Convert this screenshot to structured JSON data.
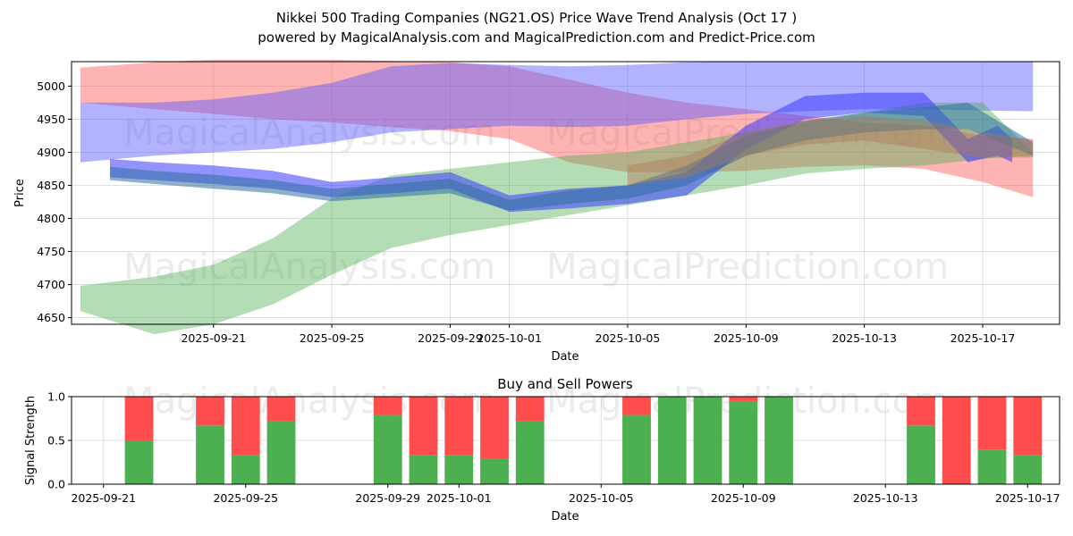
{
  "chart_data": [
    {
      "type": "area",
      "title": "Nikkei 500 Trading Companies (NG21.OS) Price Wave Trend Analysis (Oct 17 )",
      "subtitle": "powered by MagicalAnalysis.com and MagicalPrediction.com and Predict-Price.com",
      "xlabel": "Date",
      "ylabel": "Price",
      "ylim": [
        4640,
        5037
      ],
      "xlim": [
        -1.8,
        31.6
      ],
      "x_origin_date": "2025-09-18",
      "grid": true,
      "x_ticks": [
        {
          "x": 3,
          "label": "2025-09-21"
        },
        {
          "x": 7,
          "label": "2025-09-25"
        },
        {
          "x": 11,
          "label": "2025-09-29"
        },
        {
          "x": 13,
          "label": "2025-10-01"
        },
        {
          "x": 17,
          "label": "2025-10-05"
        },
        {
          "x": 21,
          "label": "2025-10-09"
        },
        {
          "x": 25,
          "label": "2025-10-13"
        },
        {
          "x": 29,
          "label": "2025-10-17"
        }
      ],
      "y_ticks": [
        4650,
        4700,
        4750,
        4800,
        4850,
        4900,
        4950,
        5000
      ],
      "bands": [
        {
          "name": "red-wave",
          "color": "#ff4d4d",
          "opacity": 0.42,
          "x": [
            -1.5,
            1,
            3,
            5,
            7,
            9,
            11,
            13,
            15,
            17,
            19,
            21,
            23,
            25,
            27,
            29,
            30.7
          ],
          "upper": [
            5028,
            5036,
            5040,
            5040,
            5040,
            5038,
            5036,
            5030,
            5010,
            4990,
            4975,
            4965,
            4955,
            4945,
            4940,
            4925,
            4920
          ],
          "lower": [
            4975,
            4965,
            4958,
            4950,
            4945,
            4938,
            4932,
            4920,
            4885,
            4870,
            4870,
            4872,
            4878,
            4880,
            4875,
            4855,
            4832
          ]
        },
        {
          "name": "purple-wave",
          "color": "#5555ff",
          "opacity": 0.45,
          "x": [
            -1.5,
            1,
            3,
            5,
            7,
            9,
            11,
            13,
            15,
            17,
            19,
            21,
            23,
            25,
            27,
            29,
            30.7
          ],
          "upper": [
            4975,
            4975,
            4980,
            4990,
            5005,
            5030,
            5035,
            5032,
            5030,
            5032,
            5036,
            5037,
            5037,
            5037,
            5037,
            5037,
            5037
          ],
          "lower": [
            4885,
            4895,
            4900,
            4905,
            4915,
            4930,
            4935,
            4940,
            4938,
            4940,
            4950,
            4958,
            4962,
            4965,
            4965,
            4963,
            4962
          ]
        },
        {
          "name": "green-wave",
          "color": "#4caf50",
          "opacity": 0.42,
          "x": [
            -1.5,
            1,
            3,
            5,
            7,
            9,
            11,
            13,
            15,
            17,
            19,
            21,
            23,
            25,
            27,
            29,
            30.7
          ],
          "upper": [
            4698,
            4712,
            4730,
            4770,
            4830,
            4865,
            4875,
            4885,
            4895,
            4900,
            4915,
            4930,
            4945,
            4960,
            4975,
            4975,
            4900
          ],
          "lower": [
            4660,
            4625,
            4640,
            4670,
            4715,
            4755,
            4775,
            4790,
            4805,
            4820,
            4835,
            4850,
            4868,
            4875,
            4880,
            4890,
            4895
          ]
        },
        {
          "name": "blue-wave",
          "color": "#3a3aff",
          "opacity": 0.55,
          "x": [
            -0.5,
            1,
            3,
            5,
            7,
            9,
            11,
            13,
            15,
            17,
            19,
            21,
            23,
            25,
            27,
            28.5,
            29.5,
            30
          ],
          "upper": [
            4890,
            4885,
            4880,
            4872,
            4855,
            4862,
            4870,
            4835,
            4845,
            4850,
            4870,
            4940,
            4985,
            4990,
            4990,
            4920,
            4940,
            4920
          ],
          "lower": [
            4862,
            4858,
            4852,
            4845,
            4832,
            4838,
            4845,
            4810,
            4815,
            4822,
            4835,
            4905,
            4950,
            4960,
            4955,
            4885,
            4895,
            4885
          ]
        },
        {
          "name": "steel-wave",
          "color": "#2f6fa0",
          "opacity": 0.55,
          "x": [
            -0.5,
            1,
            3,
            5,
            7,
            9,
            11,
            13,
            15,
            17,
            19,
            21,
            23,
            25,
            27,
            28.5,
            30.7
          ],
          "upper": [
            4878,
            4872,
            4866,
            4858,
            4845,
            4852,
            4860,
            4828,
            4842,
            4850,
            4880,
            4925,
            4948,
            4960,
            4968,
            4975,
            4915
          ],
          "lower": [
            4858,
            4852,
            4845,
            4838,
            4826,
            4832,
            4838,
            4812,
            4822,
            4830,
            4850,
            4895,
            4918,
            4930,
            4935,
            4935,
            4895
          ]
        },
        {
          "name": "brown-wave",
          "color": "#b07a55",
          "opacity": 0.45,
          "x": [
            17,
            19,
            21,
            23,
            25,
            27,
            29,
            30.7
          ],
          "upper": [
            4880,
            4895,
            4930,
            4948,
            4955,
            4948,
            4930,
            4918
          ],
          "lower": [
            4850,
            4862,
            4895,
            4912,
            4918,
            4905,
            4892,
            4892
          ]
        }
      ],
      "watermarks": [
        "MagicalAnalysis.com",
        "MagicalPrediction.com"
      ]
    },
    {
      "type": "bar",
      "title": "Buy and Sell Powers",
      "xlabel": "Date",
      "ylabel": "Signal Strength",
      "ylim": [
        0,
        1
      ],
      "xlim": [
        -0.9,
        26.9
      ],
      "x_origin_date": "2025-09-21",
      "grid": true,
      "x_ticks": [
        {
          "x": 0,
          "label": "2025-09-21"
        },
        {
          "x": 4,
          "label": "2025-09-25"
        },
        {
          "x": 8,
          "label": "2025-09-29"
        },
        {
          "x": 10,
          "label": "2025-10-01"
        },
        {
          "x": 14,
          "label": "2025-10-05"
        },
        {
          "x": 18,
          "label": "2025-10-09"
        },
        {
          "x": 22,
          "label": "2025-10-13"
        },
        {
          "x": 26,
          "label": "2025-10-17"
        }
      ],
      "y_ticks": [
        0.0,
        0.5,
        1.0
      ],
      "y_tick_labels": [
        "0.0",
        "0.5",
        "1.0"
      ],
      "series": [
        {
          "name": "Buy",
          "color": "#4caf50"
        },
        {
          "name": "Sell",
          "color": "#ff4d4d"
        }
      ],
      "bars": [
        {
          "x": 1,
          "buy": 0.5
        },
        {
          "x": 3,
          "buy": 0.67
        },
        {
          "x": 4,
          "buy": 0.33
        },
        {
          "x": 5,
          "buy": 0.72
        },
        {
          "x": 8,
          "buy": 0.79
        },
        {
          "x": 9,
          "buy": 0.33
        },
        {
          "x": 10,
          "buy": 0.33
        },
        {
          "x": 11,
          "buy": 0.29
        },
        {
          "x": 12,
          "buy": 0.72
        },
        {
          "x": 15,
          "buy": 0.79
        },
        {
          "x": 16,
          "buy": 1.0
        },
        {
          "x": 17,
          "buy": 1.0
        },
        {
          "x": 18,
          "buy": 0.95
        },
        {
          "x": 19,
          "buy": 1.0
        },
        {
          "x": 23,
          "buy": 0.67
        },
        {
          "x": 24,
          "buy": 0.0
        },
        {
          "x": 25,
          "buy": 0.39
        },
        {
          "x": 26,
          "buy": 0.33
        }
      ],
      "watermarks": [
        "MagicalAnalysis.com",
        "MagicalPrediction.com"
      ]
    }
  ]
}
